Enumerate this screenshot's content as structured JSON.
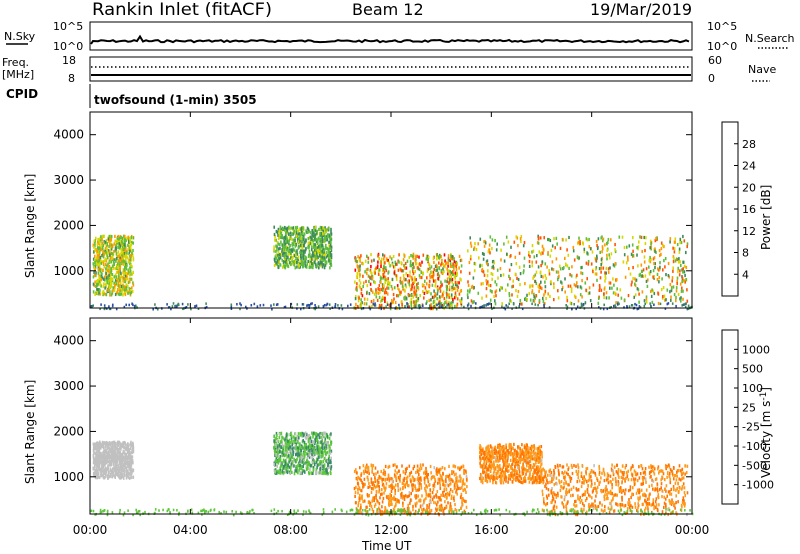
{
  "header": {
    "site": "Rankin Inlet (fitACF)",
    "beam": "Beam 12",
    "date": "19/Mar/2019"
  },
  "noise_panel": {
    "left_label": "N.Sky",
    "right_label": "N.Search",
    "left_ticks": [
      "10^5",
      "10^0"
    ],
    "right_ticks": [
      "10^5",
      "10^0"
    ]
  },
  "freq_panel": {
    "left_label_1": "Freq.",
    "left_label_2": "[MHz]",
    "right_label": "Nave",
    "left_ticks": [
      "18",
      "8"
    ],
    "right_ticks": [
      "60",
      "0"
    ]
  },
  "cpid": {
    "label": "CPID",
    "program": "twofsound (1-min) 3505"
  },
  "axes": {
    "ylabel": "Slant Range [km]",
    "xlabel": "Time UT",
    "yticks": [
      "1000",
      "2000",
      "3000",
      "4000"
    ],
    "xticks": [
      "00:00",
      "04:00",
      "08:00",
      "12:00",
      "16:00",
      "20:00",
      "00:00"
    ]
  },
  "colorbars": {
    "power": {
      "label": "Power [dB]",
      "ticks": [
        "4",
        "8",
        "12",
        "16",
        "20",
        "24",
        "28"
      ],
      "colors": [
        "#0000ff",
        "#2a4fa8",
        "#3d8a5a",
        "#5fbf3a",
        "#d8d800",
        "#ff9900",
        "#ff5500",
        "#ff0000"
      ]
    },
    "velocity": {
      "label": "Velocity [m s",
      "label_exp": "-1",
      "label_close": "]",
      "ticks": [
        "1000",
        "500",
        "100",
        "25",
        "-25",
        "-100",
        "-500",
        "-1000"
      ],
      "colors": [
        "#1a2fd0",
        "#2a56a8",
        "#3a8a6a",
        "#5cc83a",
        "#c0c0c0",
        "#ff9b1a",
        "#ff7300",
        "#ff4400",
        "#ff0000"
      ]
    }
  },
  "chart_data": [
    {
      "type": "heatmap",
      "title": "Power",
      "xlabel": "Time UT",
      "ylabel": "Slant Range [km]",
      "xlim": [
        "00:00",
        "24:00"
      ],
      "ylim": [
        180,
        4500
      ],
      "colorbar": "Power [dB]",
      "value_range": [
        3,
        30
      ],
      "series": [
        {
          "x": [
            0.1,
            1.7
          ],
          "y": [
            500,
            1800
          ],
          "values": [
            12,
            22
          ]
        },
        {
          "x": [
            7.3,
            9.6
          ],
          "y": [
            1100,
            2000
          ],
          "values": [
            10,
            18
          ]
        },
        {
          "x": [
            10.5,
            14.8
          ],
          "y": [
            200,
            1400
          ],
          "values": [
            12,
            28
          ]
        },
        {
          "x": [
            15.0,
            23.8
          ],
          "y": [
            300,
            1800
          ],
          "values": [
            10,
            26
          ]
        }
      ]
    },
    {
      "type": "heatmap",
      "title": "Velocity",
      "xlabel": "Time UT",
      "ylabel": "Slant Range [km]",
      "xlim": [
        "00:00",
        "24:00"
      ],
      "ylim": [
        180,
        4500
      ],
      "colorbar": "Velocity [m s-1]",
      "value_range": [
        -1000,
        1000
      ],
      "series": [
        {
          "x": [
            0.1,
            1.7
          ],
          "y": [
            1000,
            1800
          ],
          "values": [
            -100,
            100
          ]
        },
        {
          "x": [
            7.3,
            9.6
          ],
          "y": [
            1100,
            2000
          ],
          "values": [
            25,
            500
          ]
        },
        {
          "x": [
            10.5,
            15.0
          ],
          "y": [
            200,
            1300
          ],
          "values": [
            -500,
            -100
          ]
        },
        {
          "x": [
            15.5,
            18.0
          ],
          "y": [
            900,
            1750
          ],
          "values": [
            -500,
            -100
          ]
        },
        {
          "x": [
            18.0,
            23.8
          ],
          "y": [
            200,
            1300
          ],
          "values": [
            -500,
            -100
          ]
        }
      ]
    }
  ]
}
